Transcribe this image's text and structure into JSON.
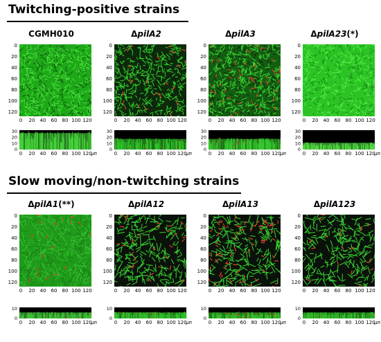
{
  "sections": [
    {
      "title": "Twitching-positive strains",
      "panels": [
        {
          "prefix": "",
          "name": "CGMH010",
          "suffix": "",
          "red": 0.0,
          "texture": "dense"
        },
        {
          "prefix": "Δ",
          "name": "pilA2",
          "suffix": "",
          "red": 0.04,
          "texture": "dark"
        },
        {
          "prefix": "Δ",
          "name": "pilA3",
          "suffix": "",
          "red": 0.08,
          "texture": "mixed"
        },
        {
          "prefix": "Δ",
          "name": "pilA23",
          "suffix": "(*)",
          "red": 0.0,
          "texture": "bright"
        }
      ],
      "xy_y_ticks": [
        "0",
        "20",
        "40",
        "60",
        "80",
        "100",
        "120"
      ],
      "xz_y_ticks": [
        "30",
        "20",
        "10",
        "0"
      ]
    },
    {
      "title": "Slow moving/non-twitching strains",
      "panels": [
        {
          "prefix": "Δ",
          "name": "pilA1",
          "suffix": "(**)",
          "red": 0.03,
          "texture": "diffuse"
        },
        {
          "prefix": "Δ",
          "name": "pilA12",
          "suffix": "",
          "red": 0.05,
          "texture": "sparse"
        },
        {
          "prefix": "Δ",
          "name": "pilA13",
          "suffix": "",
          "red": 0.12,
          "texture": "sparse"
        },
        {
          "prefix": "Δ",
          "name": "pilA123",
          "suffix": "",
          "red": 0.03,
          "texture": "sparse"
        }
      ],
      "xy_y_ticks": [
        "0",
        "20",
        "40",
        "60",
        "80",
        "100",
        "120"
      ],
      "xz_y_ticks": [
        "10",
        "0"
      ]
    }
  ],
  "x_ticks": [
    "0",
    "20",
    "40",
    "60",
    "80",
    "100",
    "120"
  ],
  "x_unit": "μm",
  "colors": {
    "biofilm_green": "#22c21c",
    "bright_green": "#3be036",
    "background": "#0b0f0b",
    "red_cells": "#e0402a"
  }
}
